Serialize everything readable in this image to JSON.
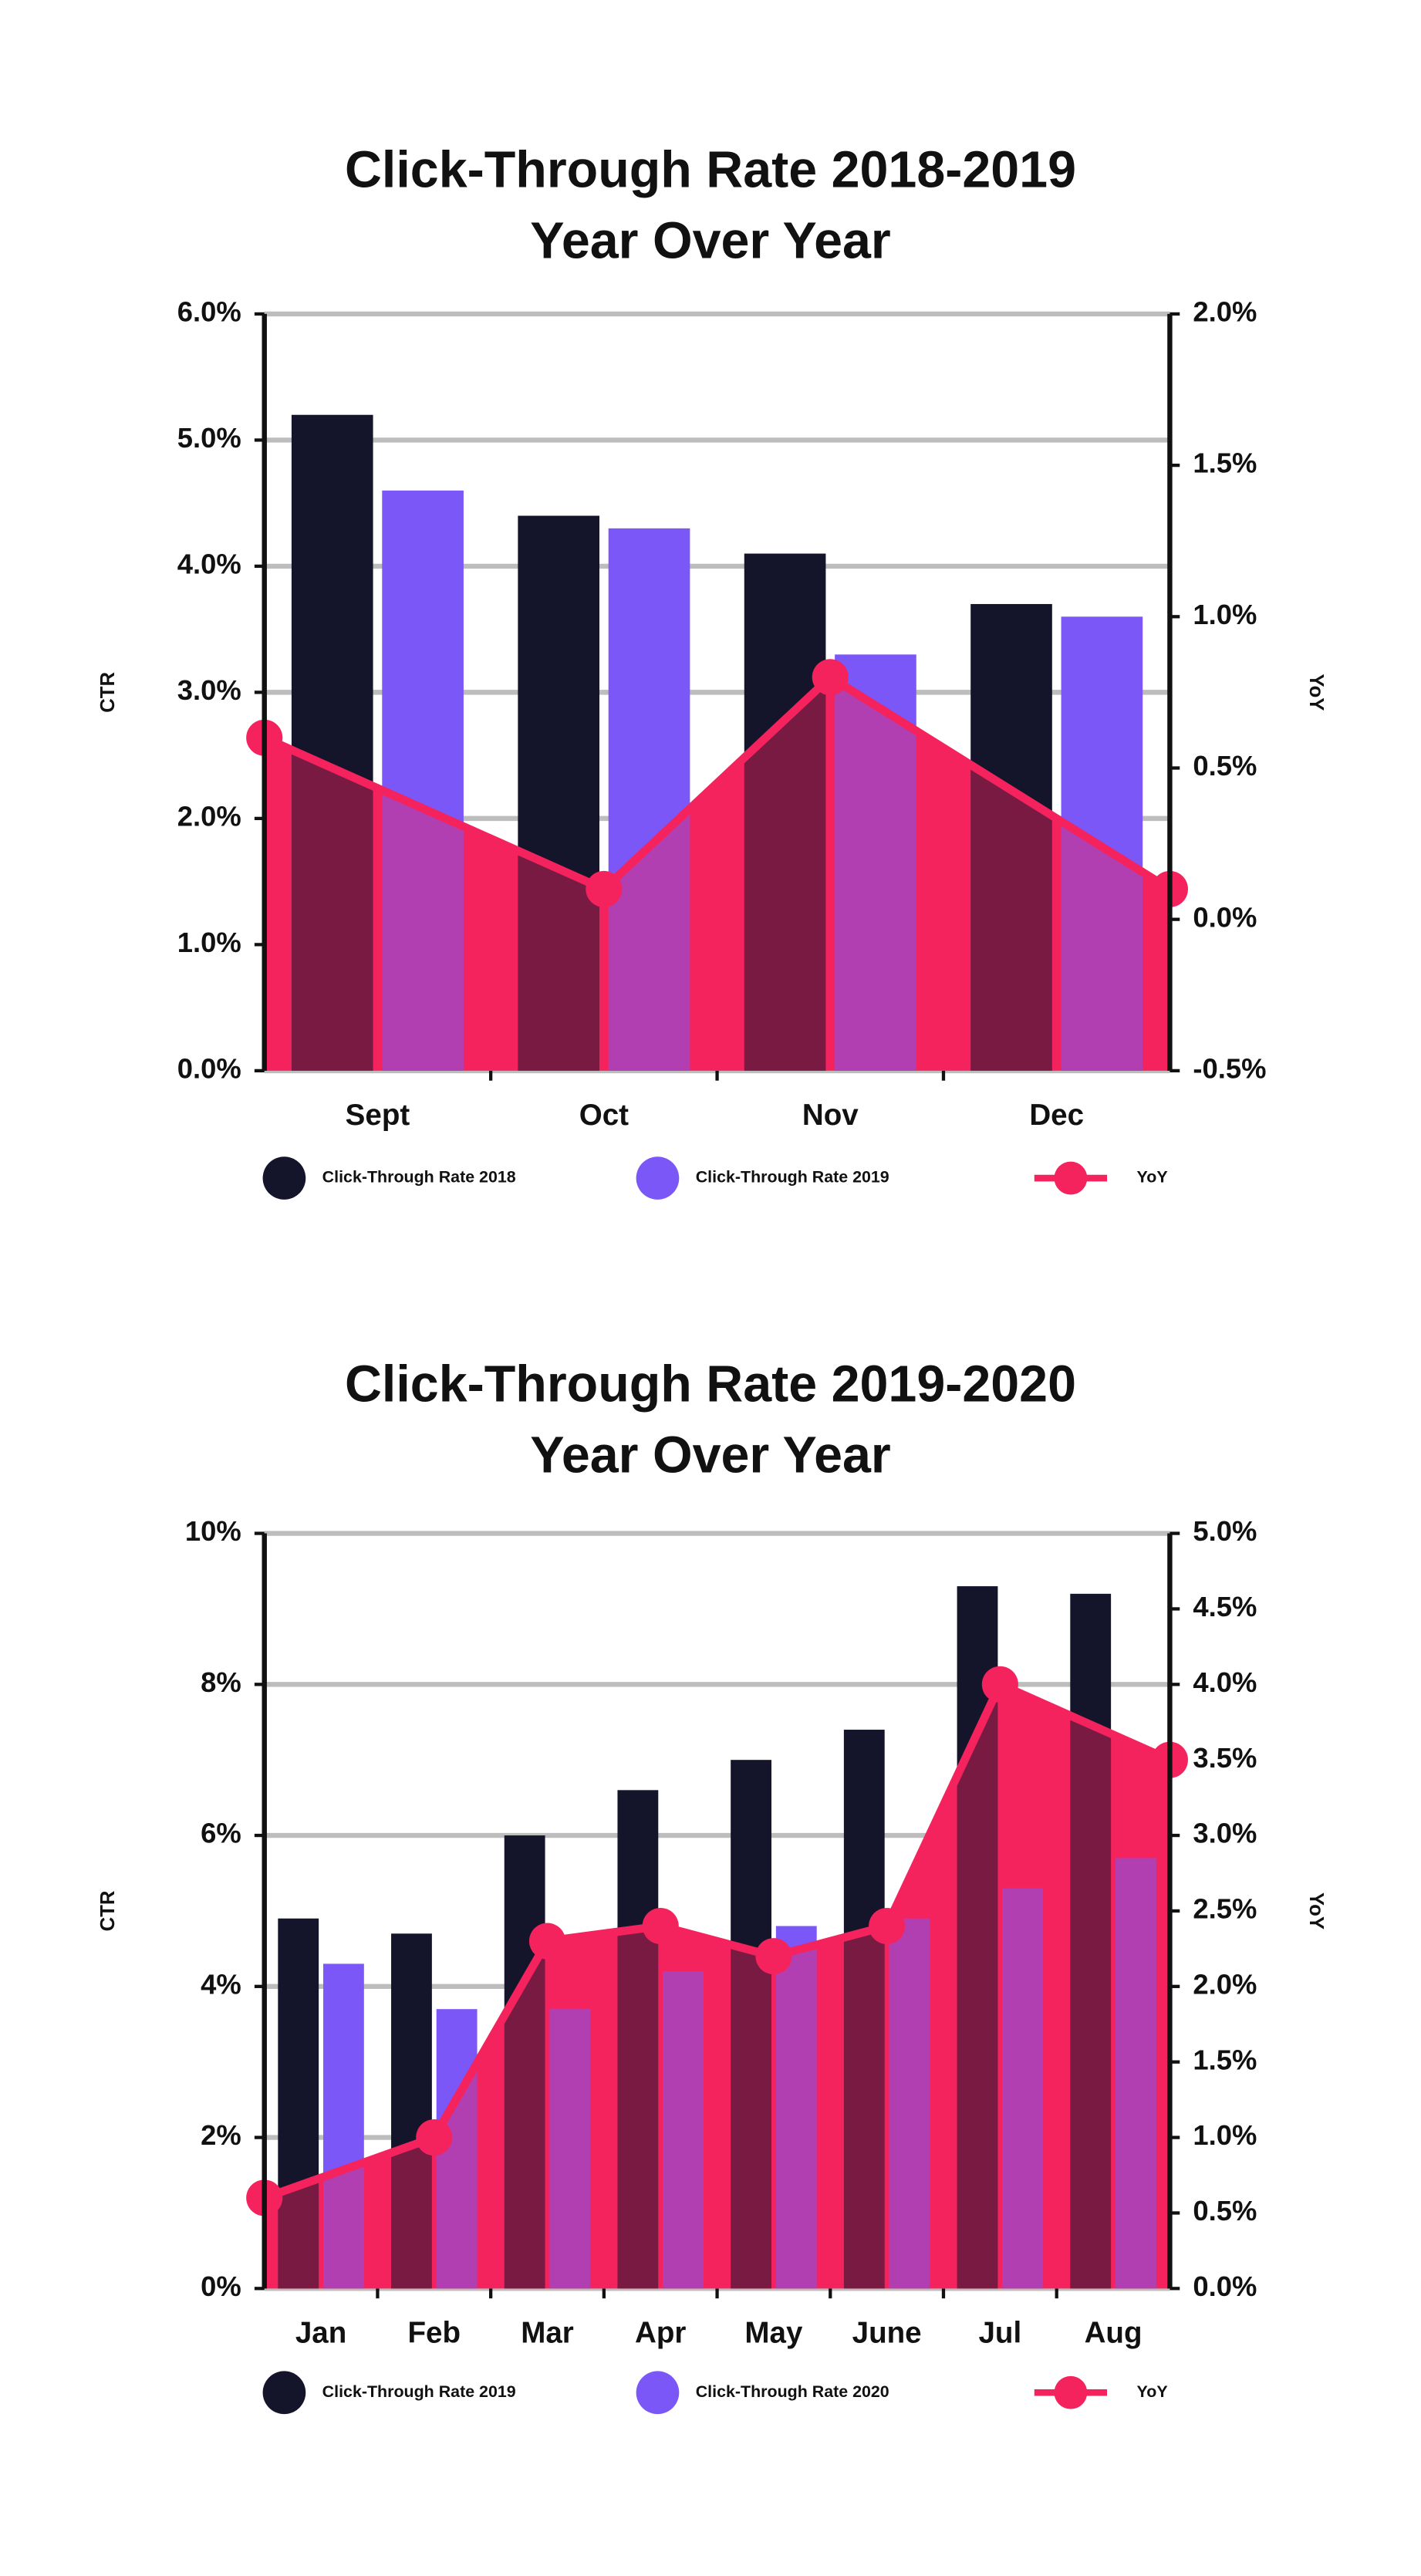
{
  "chart_data": [
    {
      "type": "bar",
      "title": "Click-Through Rate 2018-2019",
      "subtitle": "Year Over Year",
      "y_label": "CTR",
      "y2_label": "YoY",
      "categories": [
        "Sept",
        "Oct",
        "Nov",
        "Dec"
      ],
      "series": [
        {
          "name": "Click-Through Rate 2018",
          "color": "#14142b",
          "values": [
            5.2,
            4.4,
            4.1,
            3.7
          ]
        },
        {
          "name": "Click-Through Rate 2019",
          "color": "#7b57f8",
          "values": [
            4.6,
            4.3,
            3.3,
            3.6
          ]
        },
        {
          "name": "YoY",
          "color": "#f4235e",
          "type": "line",
          "axis": "y2",
          "values": [
            0.6,
            0.1,
            0.8,
            0.1
          ]
        }
      ],
      "ylim": [
        0,
        6
      ],
      "yticks": [
        {
          "value": 0,
          "label": "0.0%"
        },
        {
          "value": 1,
          "label": "1.0%"
        },
        {
          "value": 2,
          "label": "2.0%"
        },
        {
          "value": 3,
          "label": "3.0%"
        },
        {
          "value": 4,
          "label": "4.0%"
        },
        {
          "value": 5,
          "label": "5.0%"
        },
        {
          "value": 6,
          "label": "6.0%"
        }
      ],
      "y2lim": [
        -0.5,
        2
      ],
      "y2ticks": [
        {
          "value": -0.5,
          "label": "-0.5%"
        },
        {
          "value": 0,
          "label": "0.0%"
        },
        {
          "value": 0.5,
          "label": "0.5%"
        },
        {
          "value": 1,
          "label": "1.0%"
        },
        {
          "value": 1.5,
          "label": "1.5%"
        },
        {
          "value": 2,
          "label": "2.0%"
        }
      ],
      "grid": true,
      "legend": "bottom"
    },
    {
      "type": "bar",
      "title": "Click-Through Rate 2019-2020",
      "subtitle": "Year Over Year",
      "y_label": "CTR",
      "y2_label": "YoY",
      "categories": [
        "Jan",
        "Feb",
        "Mar",
        "Apr",
        "May",
        "June",
        "Jul",
        "Aug"
      ],
      "series": [
        {
          "name": "Click-Through Rate 2019",
          "color": "#14142b",
          "values": [
            4.9,
            4.7,
            6.0,
            6.6,
            7.0,
            7.4,
            9.3,
            9.2
          ]
        },
        {
          "name": "Click-Through Rate 2020",
          "color": "#7b57f8",
          "values": [
            4.3,
            3.7,
            3.7,
            4.2,
            4.8,
            4.9,
            5.3,
            5.7
          ]
        },
        {
          "name": "YoY",
          "color": "#f4235e",
          "type": "line",
          "axis": "y2",
          "values": [
            0.6,
            1.0,
            2.3,
            2.4,
            2.2,
            2.4,
            4.0,
            3.5
          ]
        }
      ],
      "ylim": [
        0,
        10
      ],
      "yticks": [
        {
          "value": 0,
          "label": "0%"
        },
        {
          "value": 2,
          "label": "2%"
        },
        {
          "value": 4,
          "label": "4%"
        },
        {
          "value": 6,
          "label": "6%"
        },
        {
          "value": 8,
          "label": "8%"
        },
        {
          "value": 10,
          "label": "10%"
        }
      ],
      "y2lim": [
        0,
        5
      ],
      "y2ticks": [
        {
          "value": 0,
          "label": "0.0%"
        },
        {
          "value": 0.5,
          "label": "0.5%"
        },
        {
          "value": 1,
          "label": "1.0%"
        },
        {
          "value": 1.5,
          "label": "1.5%"
        },
        {
          "value": 2,
          "label": "2.0%"
        },
        {
          "value": 2.5,
          "label": "2.5%"
        },
        {
          "value": 3,
          "label": "3.0%"
        },
        {
          "value": 3.5,
          "label": "3.5%"
        },
        {
          "value": 4,
          "label": "4.0%"
        },
        {
          "value": 4.5,
          "label": "4.5%"
        },
        {
          "value": 5,
          "label": "5.0%"
        }
      ],
      "grid": true,
      "legend": "bottom"
    }
  ]
}
